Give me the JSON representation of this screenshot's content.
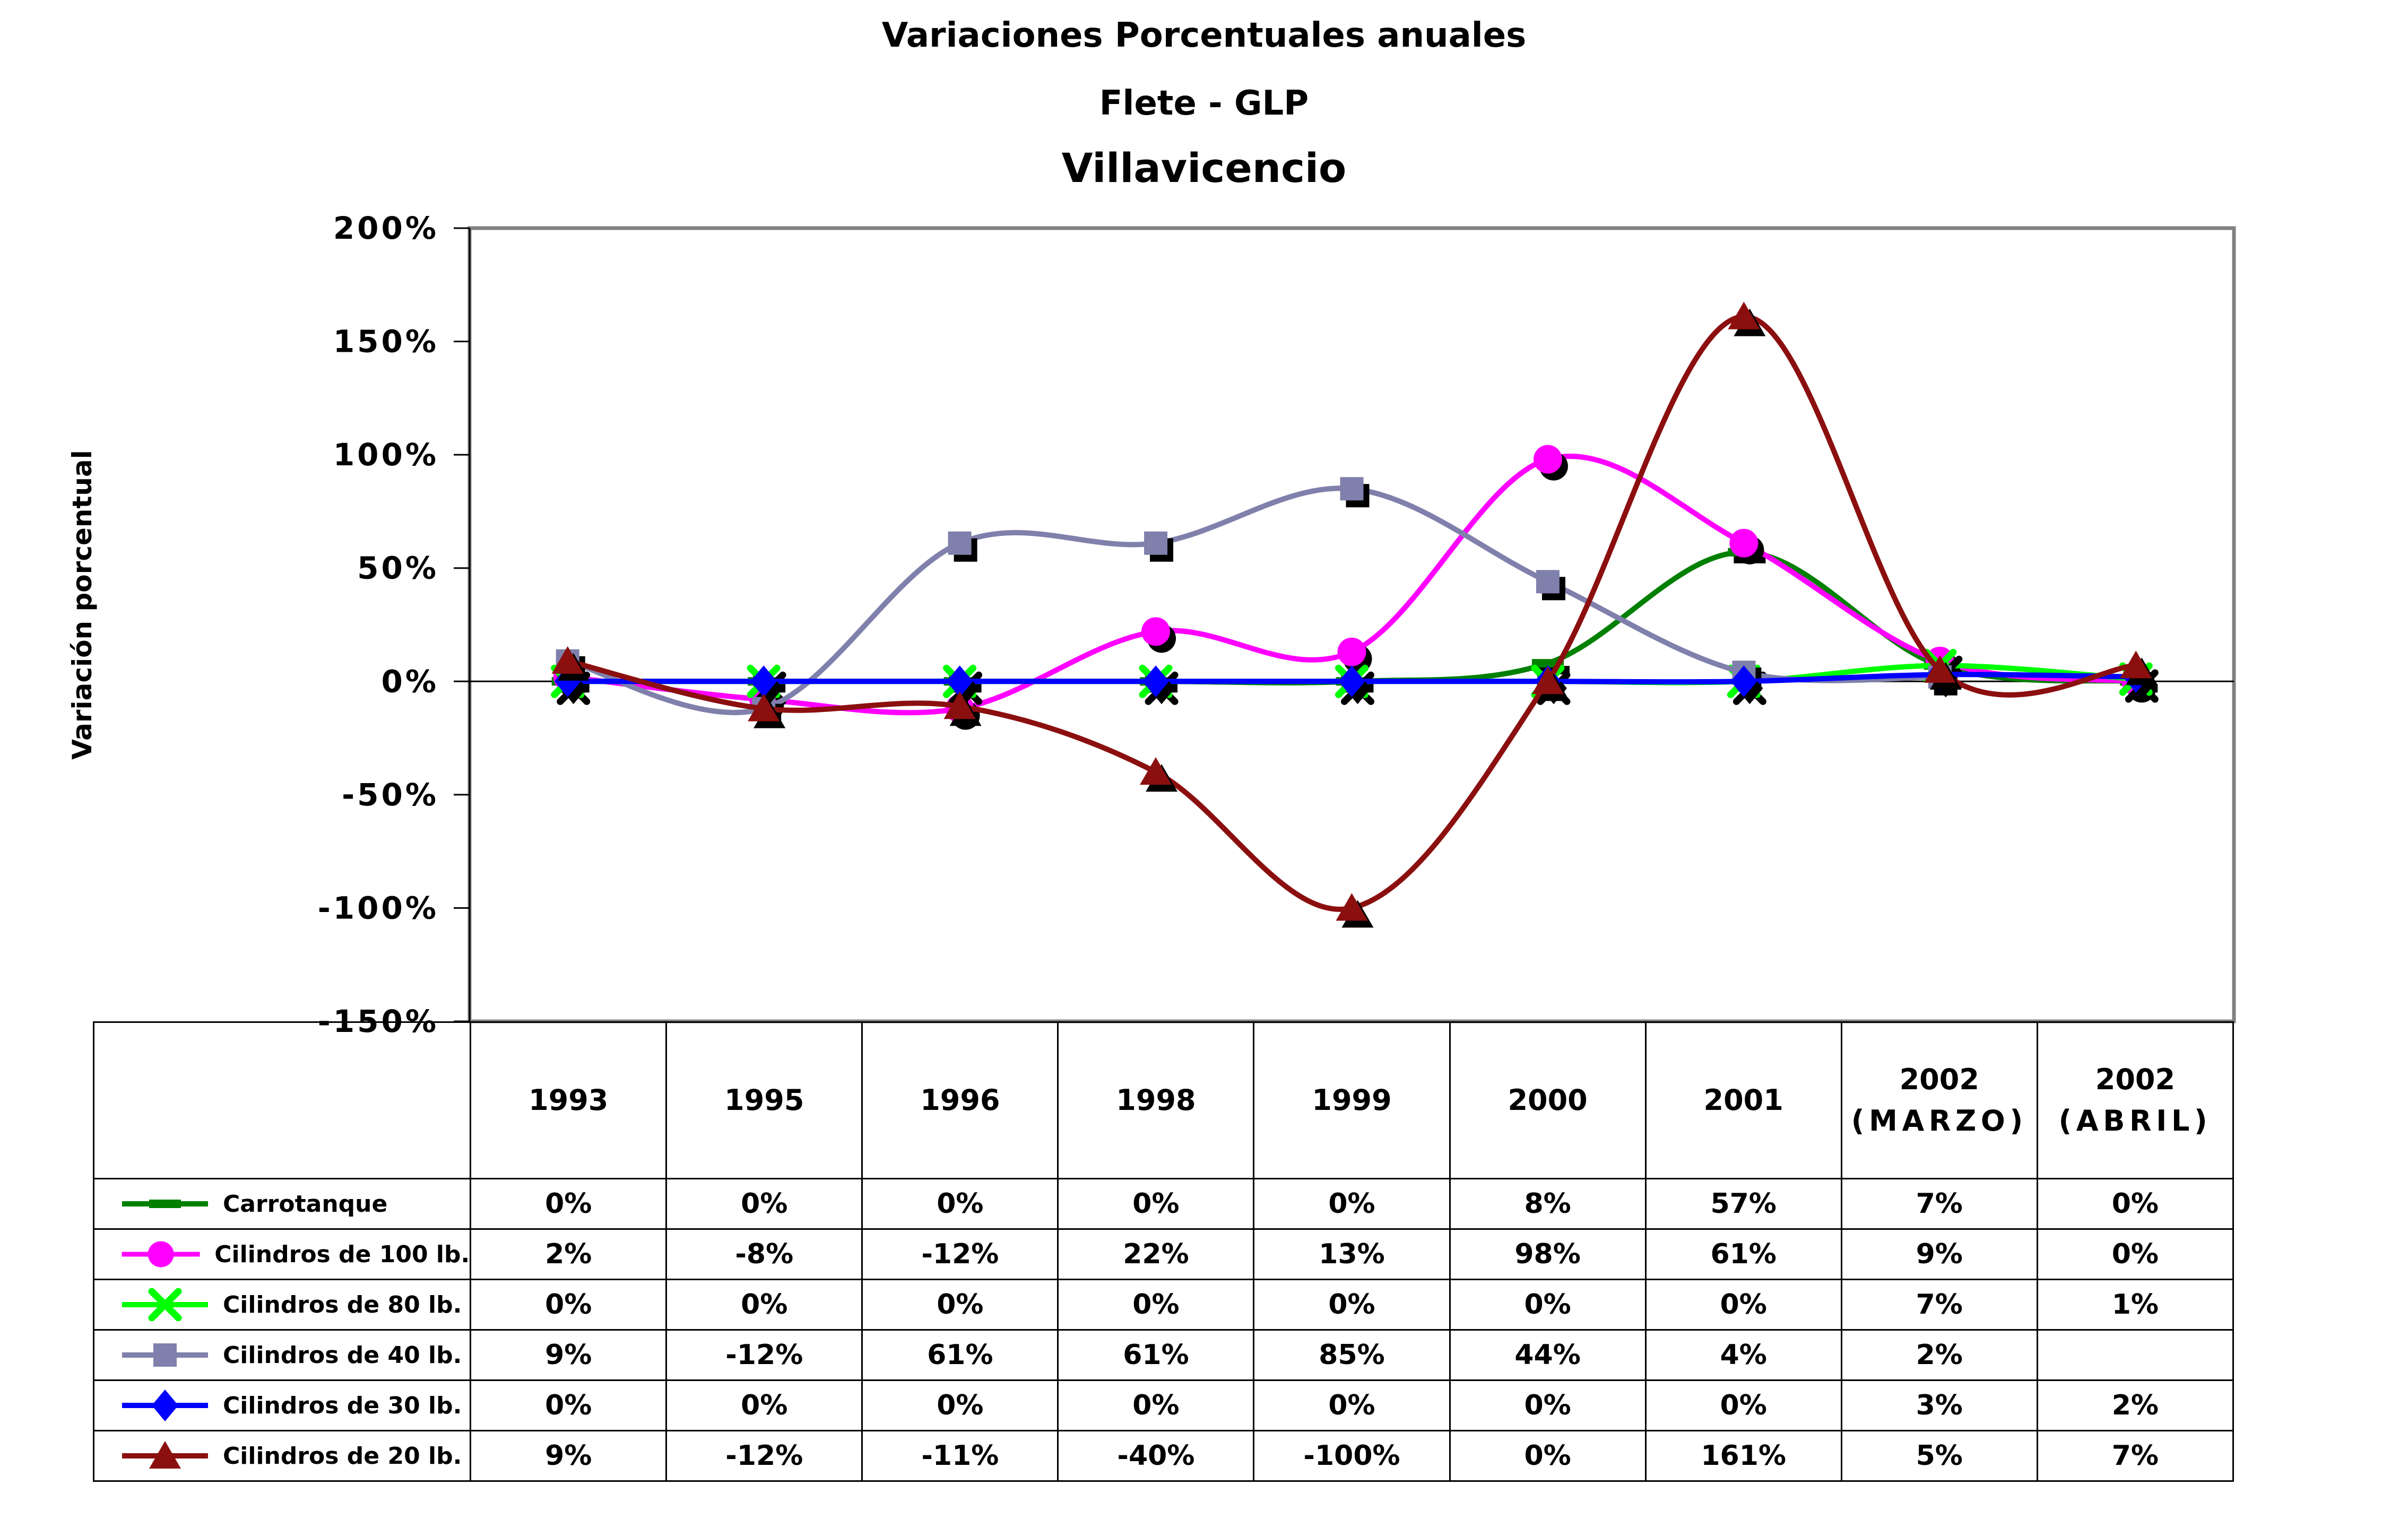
{
  "title": {
    "line1": "Variaciones Porcentuales anuales",
    "line2": "Flete - GLP",
    "line3": "Villavicencio"
  },
  "y_axis": {
    "title": "Variación porcentual"
  },
  "chart_data": {
    "type": "line",
    "smooth": true,
    "title": "Variaciones Porcentuales anuales Flete - GLP Villavicencio",
    "ylabel": "Variación porcentual",
    "xlabel": "",
    "categories": [
      [
        "1993"
      ],
      [
        "1995"
      ],
      [
        "1996"
      ],
      [
        "1998"
      ],
      [
        "1999"
      ],
      [
        "2000"
      ],
      [
        "2001"
      ],
      [
        "2002",
        "(MARZO)"
      ],
      [
        "2002",
        "(ABRIL)"
      ]
    ],
    "ylim": [
      -150,
      200
    ],
    "ytick_step": 50,
    "yticks": [
      {
        "value": 200,
        "label": "200%"
      },
      {
        "value": 150,
        "label": "150%"
      },
      {
        "value": 100,
        "label": "100%"
      },
      {
        "value": 50,
        "label": "50%"
      },
      {
        "value": 0,
        "label": "0%"
      },
      {
        "value": -50,
        "label": "-50%"
      },
      {
        "value": -100,
        "label": "-100%"
      },
      {
        "value": -150,
        "label": "-150%"
      }
    ],
    "grid": "zero-line-only",
    "legend_position": "table-left-column",
    "plot_border_color": "#808080",
    "axis_color": "#000000",
    "marker_shadow_color": "#000000",
    "value_suffix": "%",
    "series": [
      {
        "id": "carrotanque",
        "name": "Carrotanque",
        "color": "#008000",
        "marker": "dash",
        "values": [
          0,
          0,
          0,
          0,
          0,
          8,
          57,
          7,
          0
        ]
      },
      {
        "id": "cilindros-100",
        "name": "Cilindros de 100 lb.",
        "color": "#FF00FF",
        "marker": "circle",
        "values": [
          2,
          -8,
          -12,
          22,
          13,
          98,
          61,
          9,
          0
        ]
      },
      {
        "id": "cilindros-80",
        "name": "Cilindros de 80 lb.",
        "color": "#00FF00",
        "marker": "x",
        "values": [
          0,
          0,
          0,
          0,
          0,
          0,
          0,
          7,
          1
        ]
      },
      {
        "id": "cilindros-40",
        "name": "Cilindros de 40 lb.",
        "color": "#8080AC",
        "marker": "square",
        "values": [
          9,
          -12,
          61,
          61,
          85,
          44,
          4,
          2,
          null
        ]
      },
      {
        "id": "cilindros-30",
        "name": "Cilindros de 30 lb.",
        "color": "#0000FF",
        "marker": "diamond",
        "values": [
          0,
          0,
          0,
          0,
          0,
          0,
          0,
          3,
          2
        ]
      },
      {
        "id": "cilindros-20",
        "name": "Cilindros de 20 lb.",
        "color": "#8B0F0F",
        "marker": "triangle",
        "values": [
          9,
          -12,
          -11,
          -40,
          -100,
          0,
          161,
          5,
          7
        ]
      }
    ]
  }
}
